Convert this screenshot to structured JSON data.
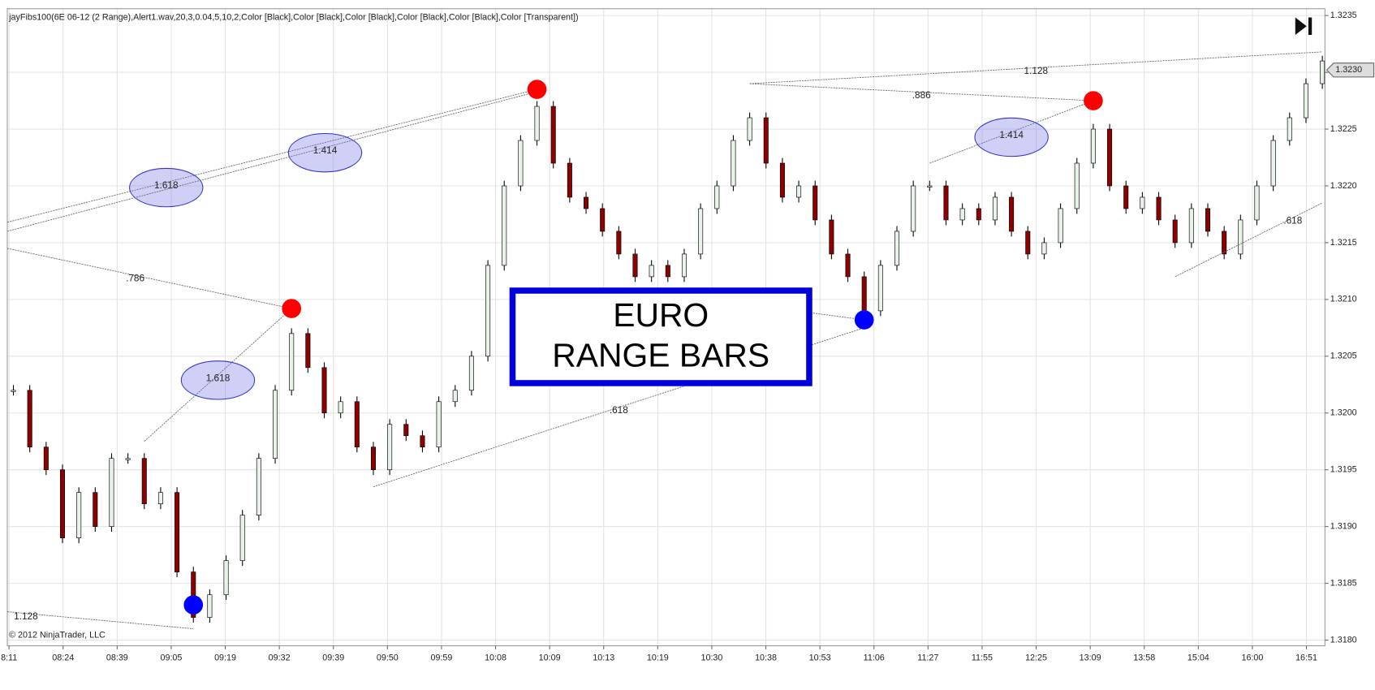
{
  "header": {
    "indicator": "jayFibs100(6E 06-12 (2 Range),Alert1.wav,20,3,0.04,5,10,2,Color [Black],Color [Black],Color [Black],Color [Black],Color [Black],Color [Transparent])"
  },
  "copyright": "© 2012 NinjaTrader, LLC",
  "annotation": [
    "EURO",
    "RANGE BARS"
  ],
  "chart_data": {
    "type": "candlestick",
    "ylim": [
      1.31795,
      1.32356
    ],
    "yticks": [
      1.3235,
      {
        "value": 1.323,
        "label": "1.3230"
      },
      1.3225,
      {
        "value": 1.322,
        "label": "1.3220"
      },
      1.3215,
      {
        "value": 1.321,
        "label": "1.3210"
      },
      1.3205,
      {
        "value": 1.32,
        "label": "1.3200"
      },
      1.3195,
      {
        "value": 1.319,
        "label": "1.3190"
      },
      1.3185,
      {
        "value": 1.318,
        "label": "1.3180"
      }
    ],
    "current_price": {
      "value": 1.32302,
      "label": "1.3230"
    },
    "time_labels": [
      "8:11",
      "08:24",
      "08:39",
      "09:05",
      "09:19",
      "09:32",
      "09:39",
      "09:50",
      "09:59",
      "10:08",
      "10:09",
      "10:13",
      "10:19",
      "10:30",
      "10:38",
      "10:53",
      "11:06",
      "11:27",
      "11:55",
      "12:25",
      "13:09",
      "13:58",
      "15:04",
      "16:00",
      "16:51"
    ],
    "prices": [
      1.3202,
      1.3197,
      1.3195,
      1.3189,
      1.3193,
      1.319,
      1.3196,
      1.3196,
      1.3192,
      1.3193,
      1.3186,
      1.3182,
      1.3184,
      1.3187,
      1.3191,
      1.3196,
      1.3202,
      1.3207,
      1.3204,
      1.32,
      1.3201,
      1.3197,
      1.3195,
      1.3199,
      1.3198,
      1.3197,
      1.3201,
      1.3202,
      1.3205,
      1.3213,
      1.322,
      1.3224,
      1.3227,
      1.3222,
      1.3219,
      1.3218,
      1.3216,
      1.3214,
      1.3212,
      1.3213,
      1.3212,
      1.3214,
      1.3218,
      1.322,
      1.3224,
      1.3226,
      1.3222,
      1.3219,
      1.322,
      1.3217,
      1.3214,
      1.3212,
      1.3209,
      1.3213,
      1.3216,
      1.322,
      1.322,
      1.3217,
      1.3218,
      1.3217,
      1.3219,
      1.3216,
      1.3214,
      1.3215,
      1.3218,
      1.3222,
      1.3225,
      1.322,
      1.3218,
      1.3219,
      1.3217,
      1.3215,
      1.3218,
      1.3216,
      1.3214,
      1.3217,
      1.322,
      1.3224,
      1.3226,
      1.3229,
      1.3231
    ],
    "pivots": [
      {
        "bar": 11,
        "price": 1.31831,
        "color": "#0000ff"
      },
      {
        "bar": 17,
        "price": 1.32092,
        "color": "#ff0000"
      },
      {
        "bar": 32,
        "price": 1.32285,
        "color": "#ff0000"
      },
      {
        "bar": 52,
        "price": 1.32082,
        "color": "#0000ff"
      },
      {
        "bar": 66,
        "price": 1.32275,
        "color": "#ff0000"
      }
    ],
    "fib_lines": [
      {
        "from": [
          0,
          1.32168
        ],
        "to": [
          32,
          1.32285
        ],
        "label": "1.618",
        "ellipse": true
      },
      {
        "from": [
          0,
          1.3216
        ],
        "to": [
          32,
          1.32283
        ],
        "label": "1.414",
        "ellipse": true
      },
      {
        "from": [
          0,
          1.32145
        ],
        "to": [
          17,
          1.32092
        ],
        "label": ".786",
        "ellipse": false
      },
      {
        "from": [
          8,
          1.31975
        ],
        "to": [
          17,
          1.32092
        ],
        "label": "1.618",
        "ellipse": true
      },
      {
        "from": [
          0,
          1.31825
        ],
        "to": [
          11,
          1.3181
        ],
        "label": "1.128",
        "ellipse": false
      },
      {
        "from": [
          22,
          1.31935
        ],
        "to": [
          52,
          1.32075
        ],
        "label": ".618",
        "ellipse": false
      },
      {
        "from": [
          40,
          1.32105
        ],
        "to": [
          52,
          1.32082
        ],
        "label": "1.128",
        "ellipse": false
      },
      {
        "from": [
          45,
          1.3229
        ],
        "to": [
          80,
          1.32318
        ],
        "label": "1.128",
        "ellipse": false
      },
      {
        "from": [
          45,
          1.3229
        ],
        "to": [
          66,
          1.32275
        ],
        "label": ".886",
        "ellipse": false
      },
      {
        "from": [
          56,
          1.3222
        ],
        "to": [
          66,
          1.32275
        ],
        "label": "1.414",
        "ellipse": true
      },
      {
        "from": [
          71,
          1.3212
        ],
        "to": [
          80,
          1.32185
        ],
        "label": ".618",
        "ellipse": false
      }
    ]
  }
}
